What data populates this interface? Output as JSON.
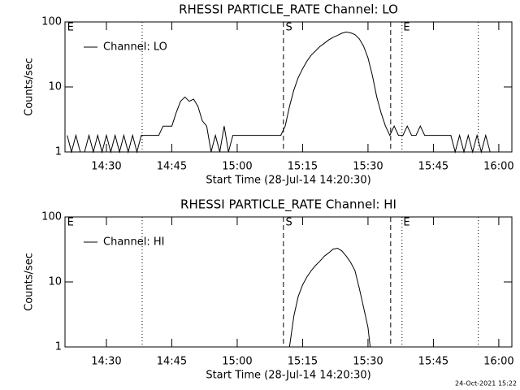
{
  "footer": "24-Oct-2021 15:22",
  "chart_data": [
    {
      "type": "line",
      "title": "RHESSI PARTICLE_RATE Channel: LO",
      "ylabel": "Counts/sec",
      "xlabel": "Start Time (28-Jul-14 14:20:30)",
      "log_y": true,
      "legend": "upper left",
      "xlim": [
        20.5,
        123
      ],
      "ylim": [
        1,
        100
      ],
      "yticks": [
        1,
        10,
        100
      ],
      "xticks": [
        {
          "value": 30,
          "label": "14:30"
        },
        {
          "value": 45,
          "label": "14:45"
        },
        {
          "value": 60,
          "label": "15:00"
        },
        {
          "value": 75,
          "label": "15:15"
        },
        {
          "value": 90,
          "label": "15:30"
        },
        {
          "value": 105,
          "label": "15:45"
        },
        {
          "value": 120,
          "label": "16:00"
        }
      ],
      "markers": [
        {
          "x": 38.2,
          "style": "dotted"
        },
        {
          "x": 70.6,
          "style": "dashed"
        },
        {
          "x": 95.2,
          "style": "dashed"
        },
        {
          "x": 97.8,
          "style": "dotted"
        },
        {
          "x": 115.3,
          "style": "dotted"
        }
      ],
      "annotations": [
        {
          "text": "E",
          "x": 21
        },
        {
          "text": "S",
          "x": 71.1
        },
        {
          "text": "E",
          "x": 98.1
        }
      ],
      "x": [
        21,
        22,
        23,
        24,
        25,
        26,
        27,
        28,
        29,
        30,
        31,
        32,
        33,
        34,
        35,
        36,
        37,
        38,
        39,
        40,
        41,
        42,
        43,
        44,
        45,
        46,
        47,
        48,
        49,
        50,
        51,
        52,
        53,
        54,
        55,
        56,
        57,
        58,
        59,
        60,
        61,
        62,
        63,
        64,
        65,
        66,
        67,
        68,
        69,
        70,
        71,
        72,
        73,
        74,
        75,
        76,
        77,
        78,
        79,
        80,
        81,
        82,
        83,
        84,
        85,
        86,
        87,
        88,
        89,
        90,
        91,
        92,
        93,
        94,
        95,
        96,
        97,
        98,
        99,
        100,
        101,
        102,
        103,
        104,
        105,
        106,
        107,
        108,
        109,
        110,
        111,
        112,
        113,
        114,
        115,
        116,
        117,
        118
      ],
      "series": [
        {
          "name": "Channel: LO",
          "color": "#000000",
          "values": [
            1.8,
            1,
            1.8,
            1,
            1,
            1.8,
            1,
            1.8,
            1,
            1.8,
            1,
            1.8,
            1,
            1.8,
            1,
            1.8,
            1,
            1.8,
            1.8,
            1.8,
            1.8,
            1.8,
            2.5,
            2.5,
            2.5,
            4,
            6,
            7,
            6,
            6.5,
            5,
            3,
            2.5,
            1,
            1.8,
            1,
            2.5,
            1,
            1.8,
            1.8,
            1.8,
            1.8,
            1.8,
            1.8,
            1.8,
            1.8,
            1.8,
            1.8,
            1.8,
            1.8,
            2.5,
            5,
            9,
            14,
            19,
            25,
            31,
            36,
            42,
            47,
            53,
            58,
            62,
            67,
            70,
            68,
            64,
            55,
            42,
            28,
            15,
            7,
            4,
            2.5,
            1.8,
            2.5,
            1.8,
            1.8,
            2.5,
            1.8,
            1.8,
            2.5,
            1.8,
            1.8,
            1.8,
            1.8,
            1.8,
            1.8,
            1.8,
            1,
            1.8,
            1,
            1.8,
            1,
            1.8,
            1,
            1.8,
            1
          ]
        }
      ]
    },
    {
      "type": "line",
      "title": "RHESSI PARTICLE_RATE Channel: HI",
      "ylabel": "Counts/sec",
      "xlabel": "Start Time (28-Jul-14 14:20:30)",
      "log_y": true,
      "legend": "upper left",
      "xlim": [
        20.5,
        123
      ],
      "ylim": [
        1,
        100
      ],
      "yticks": [
        1,
        10,
        100
      ],
      "xticks": [
        {
          "value": 30,
          "label": "14:30"
        },
        {
          "value": 45,
          "label": "14:45"
        },
        {
          "value": 60,
          "label": "15:00"
        },
        {
          "value": 75,
          "label": "15:15"
        },
        {
          "value": 90,
          "label": "15:30"
        },
        {
          "value": 105,
          "label": "15:45"
        },
        {
          "value": 120,
          "label": "16:00"
        }
      ],
      "markers": [
        {
          "x": 38.2,
          "style": "dotted"
        },
        {
          "x": 70.6,
          "style": "dashed"
        },
        {
          "x": 95.2,
          "style": "dashed"
        },
        {
          "x": 97.8,
          "style": "dotted"
        },
        {
          "x": 115.3,
          "style": "dotted"
        }
      ],
      "annotations": [
        {
          "text": "E",
          "x": 21
        },
        {
          "text": "S",
          "x": 71.1
        },
        {
          "text": "E",
          "x": 98.1
        }
      ],
      "x": [
        72,
        73,
        74,
        75,
        76,
        77,
        78,
        79,
        80,
        81,
        82,
        83,
        84,
        85,
        86,
        87,
        88,
        89,
        90,
        90.5
      ],
      "series": [
        {
          "name": "Channel: HI",
          "color": "#000000",
          "values": [
            1,
            3,
            6,
            9,
            12,
            15,
            18,
            21,
            25,
            28,
            32,
            33,
            30,
            25,
            20,
            15,
            8,
            4,
            2,
            1
          ]
        }
      ]
    }
  ]
}
